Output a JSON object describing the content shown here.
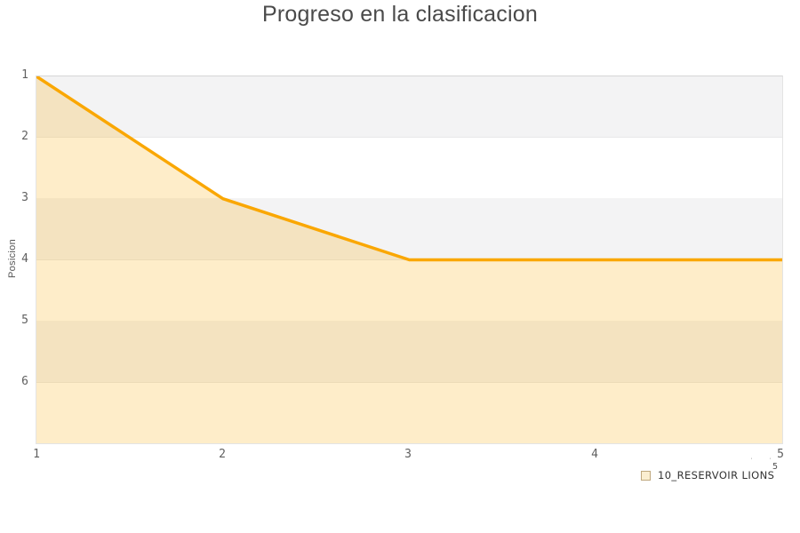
{
  "title": "Progreso en la clasificacion",
  "axis": {
    "y_title": "Posicion"
  },
  "legend": {
    "label": "10_RESERVOIR LIONS"
  },
  "extras": {
    "small_tick_label": "5",
    "stray_mark_1": "'",
    "stray_mark_2": "'"
  },
  "colors": {
    "line": "#faa702",
    "area_fill": "rgba(250,168,0,0.21)",
    "band_gray": "#f3f3f4",
    "band_white": "#ffffff",
    "title_text": "#4a4a4a",
    "tick_text": "#606060",
    "legend_text": "#333333",
    "legend_marker_fill": "#fbeed0",
    "legend_marker_border": "#bfa87e"
  },
  "chart_data": {
    "type": "area",
    "title": "Progreso en la clasificacion",
    "xlabel": "",
    "ylabel": "Posicion",
    "x": [
      1,
      2,
      3,
      4,
      5
    ],
    "xticks": [
      "1",
      "2",
      "3",
      "4",
      "5"
    ],
    "yticks": [
      "1",
      "2",
      "3",
      "4",
      "5",
      "6"
    ],
    "xlim": [
      1,
      5
    ],
    "ylim": [
      1,
      7
    ],
    "y_inverted": true,
    "grid": "horizontal-alternating-bands",
    "legend_position": "bottom-right",
    "series": [
      {
        "name": "10_RESERVOIR LIONS",
        "values": [
          1,
          3,
          4,
          4,
          4
        ],
        "line_color": "#faa702",
        "fill_color": "rgba(250,168,0,0.21)"
      }
    ]
  }
}
